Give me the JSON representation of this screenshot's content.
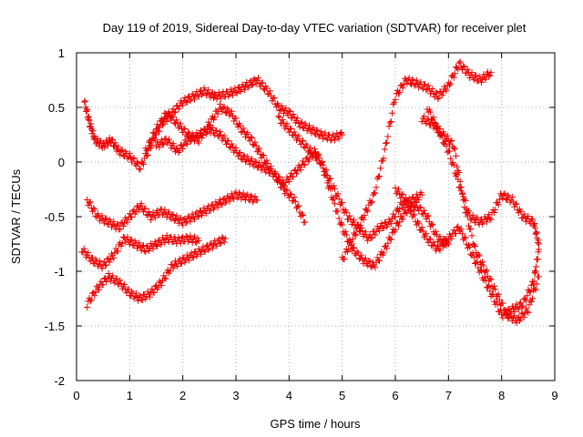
{
  "chart_data": {
    "type": "scatter",
    "title": "Day 119 of 2019, Sidereal Day-to-day VTEC variation (SDTVAR) for receiver plet",
    "xlabel": "GPS time / hours",
    "ylabel": "SDTVAR / TECUs",
    "xlim": [
      0,
      9
    ],
    "ylim": [
      -2,
      1
    ],
    "x_ticks": [
      0,
      1,
      2,
      3,
      4,
      5,
      6,
      7,
      8,
      9
    ],
    "y_ticks": [
      -2,
      -1.5,
      -1,
      -0.5,
      0,
      0.5,
      1
    ],
    "x_tick_labels": [
      "0",
      "1",
      "2",
      "3",
      "4",
      "5",
      "6",
      "7",
      "8",
      "9"
    ],
    "y_tick_labels": [
      "-2",
      "-1.5",
      "-1",
      "-0.5",
      "0",
      "0.5",
      "1"
    ],
    "grid": true,
    "marker": "+",
    "color": "#ee0000",
    "series": [
      {
        "x": [
          0.15,
          0.25,
          0.35,
          0.5,
          0.65,
          0.8,
          1.0,
          1.2,
          1.4,
          1.6,
          1.8,
          2.0,
          2.2,
          2.4,
          2.6
        ],
        "y": [
          0.55,
          0.35,
          0.2,
          0.15,
          0.2,
          0.1,
          0.05,
          -0.05,
          0.15,
          0.35,
          0.45,
          0.55,
          0.6,
          0.65,
          0.6
        ]
      },
      {
        "x": [
          2.6,
          2.8,
          3.0,
          3.2,
          3.4,
          3.6,
          3.8,
          4.0,
          4.2,
          4.4,
          4.6,
          4.8,
          5.0
        ],
        "y": [
          0.6,
          0.62,
          0.65,
          0.7,
          0.75,
          0.65,
          0.5,
          0.45,
          0.35,
          0.3,
          0.25,
          0.22,
          0.25
        ]
      },
      {
        "x": [
          1.3,
          1.5,
          1.7,
          1.9,
          2.1,
          2.3,
          2.5,
          2.7,
          2.9,
          3.1,
          3.3,
          3.5,
          3.7,
          3.9,
          4.1,
          4.3
        ],
        "y": [
          0.1,
          0.3,
          0.45,
          0.35,
          0.25,
          0.2,
          0.35,
          0.5,
          0.45,
          0.3,
          0.2,
          0.05,
          -0.1,
          -0.25,
          -0.35,
          -0.55
        ]
      },
      {
        "x": [
          0.2,
          0.4,
          0.6,
          0.8,
          1.0,
          1.2,
          1.4,
          1.6,
          1.8,
          2.0,
          2.2,
          2.4,
          2.6,
          2.8,
          3.0,
          3.2,
          3.4
        ],
        "y": [
          -0.35,
          -0.5,
          -0.55,
          -0.6,
          -0.5,
          -0.4,
          -0.5,
          -0.45,
          -0.5,
          -0.55,
          -0.5,
          -0.45,
          -0.4,
          -0.35,
          -0.3,
          -0.32,
          -0.35
        ]
      },
      {
        "x": [
          0.1,
          0.3,
          0.5,
          0.7,
          0.9,
          1.1,
          1.3,
          1.5,
          1.7,
          1.9,
          2.1,
          2.3
        ],
        "y": [
          -0.8,
          -0.9,
          -0.95,
          -0.85,
          -0.7,
          -0.75,
          -0.8,
          -0.75,
          -0.7,
          -0.72,
          -0.7,
          -0.72
        ]
      },
      {
        "x": [
          0.2,
          0.4,
          0.6,
          0.8,
          1.0,
          1.2,
          1.4,
          1.6,
          1.8,
          2.0,
          2.2,
          2.4,
          2.6,
          2.8
        ],
        "y": [
          -1.3,
          -1.15,
          -1.05,
          -1.1,
          -1.2,
          -1.25,
          -1.2,
          -1.1,
          -0.95,
          -0.9,
          -0.85,
          -0.8,
          -0.75,
          -0.7
        ]
      },
      {
        "x": [
          1.5,
          1.7,
          1.9,
          2.1,
          2.3,
          2.5,
          2.7,
          2.9,
          3.1,
          3.3,
          3.5,
          3.7,
          3.9,
          4.1,
          4.3,
          4.5,
          4.7,
          4.9,
          5.1,
          5.3,
          5.5,
          5.7,
          5.9,
          6.1,
          6.3,
          6.5
        ],
        "y": [
          0.15,
          0.2,
          0.1,
          0.2,
          0.25,
          0.3,
          0.25,
          0.15,
          0.05,
          0.0,
          -0.05,
          -0.1,
          -0.2,
          -0.1,
          0.0,
          0.1,
          -0.1,
          -0.3,
          -0.5,
          -0.6,
          -0.7,
          -0.6,
          -0.55,
          -0.4,
          -0.35,
          -0.3
        ]
      },
      {
        "x": [
          3.8,
          4.0,
          4.2,
          4.4,
          4.6,
          4.8,
          5.0,
          5.2,
          5.4,
          5.6,
          5.8,
          6.0,
          6.2,
          6.4,
          6.6,
          6.8,
          7.0
        ],
        "y": [
          0.4,
          0.3,
          0.2,
          0.1,
          0.0,
          -0.3,
          -0.6,
          -0.8,
          -0.9,
          -0.95,
          -0.8,
          -0.6,
          -0.45,
          -0.4,
          -0.5,
          -0.7,
          -0.75
        ]
      },
      {
        "x": [
          5.0,
          5.2,
          5.4,
          5.6,
          5.8,
          6.0,
          6.2,
          6.4,
          6.6,
          6.8,
          7.0,
          7.2,
          7.4,
          7.6,
          7.8
        ],
        "y": [
          -0.9,
          -0.7,
          -0.5,
          -0.3,
          0.1,
          0.6,
          0.75,
          0.72,
          0.68,
          0.6,
          0.7,
          0.9,
          0.8,
          0.75,
          0.82
        ]
      },
      {
        "x": [
          6.0,
          6.2,
          6.4,
          6.6,
          6.8,
          7.0,
          7.2,
          7.4,
          7.6,
          7.8,
          8.0,
          8.2,
          8.4,
          8.6,
          8.7
        ],
        "y": [
          -0.25,
          -0.35,
          -0.55,
          -0.7,
          -0.8,
          -0.7,
          -0.6,
          -0.8,
          -1.0,
          -1.2,
          -1.4,
          -1.35,
          -1.3,
          -1.1,
          -0.8
        ]
      },
      {
        "x": [
          6.6,
          6.8,
          7.0,
          7.2,
          7.4,
          7.6,
          7.8,
          8.0,
          8.2,
          8.4,
          8.6,
          8.7
        ],
        "y": [
          0.5,
          0.3,
          0.1,
          -0.2,
          -0.5,
          -0.55,
          -0.5,
          -0.3,
          -0.35,
          -0.5,
          -0.55,
          -0.75
        ]
      },
      {
        "x": [
          6.5,
          6.7,
          6.9,
          7.1,
          7.3,
          7.5,
          7.7,
          7.9,
          8.1,
          8.3,
          8.5,
          8.7
        ],
        "y": [
          0.4,
          0.35,
          0.25,
          0.15,
          -0.4,
          -0.8,
          -1.0,
          -1.2,
          -1.4,
          -1.45,
          -1.35,
          -1.05
        ]
      }
    ]
  }
}
